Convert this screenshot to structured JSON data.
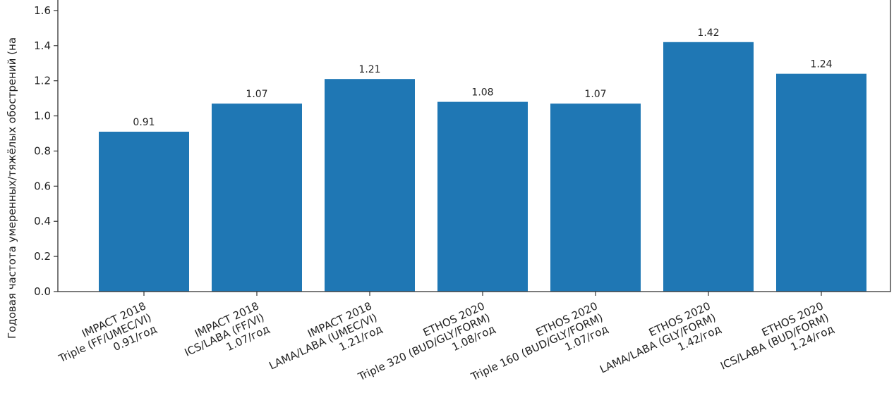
{
  "chart_data": {
    "type": "bar",
    "title": "",
    "xlabel": "",
    "ylabel": "Годовая частота умеренных/тяжёлых обострений (на",
    "ylim": [
      0,
      1.78
    ],
    "yticks": [
      "0.0",
      "0.2",
      "0.4",
      "0.6",
      "0.8",
      "1.0",
      "1.2",
      "1.4",
      "1.6"
    ],
    "bar_color": "#1f77b4",
    "grid": false,
    "categories": [
      [
        "IMPACT 2018",
        "Triple (FF/UMEC/VI)",
        "0.91/год"
      ],
      [
        "IMPACT 2018",
        "ICS/LABA (FF/VI)",
        "1.07/год"
      ],
      [
        "IMPACT 2018",
        "LAMA/LABA (UMEC/VI)",
        "1.21/год"
      ],
      [
        "ETHOS 2020",
        "Triple 320 (BUD/GLY/FORM)",
        "1.08/год"
      ],
      [
        "ETHOS 2020",
        "Triple 160 (BUD/GLY/FORM)",
        "1.07/год"
      ],
      [
        "ETHOS 2020",
        "LAMA/LABA (GLY/FORM)",
        "1.42/год"
      ],
      [
        "ETHOS 2020",
        "ICS/LABA (BUD/FORM)",
        "1.24/год"
      ]
    ],
    "values": [
      0.91,
      1.07,
      1.21,
      1.08,
      1.07,
      1.42,
      1.24
    ],
    "value_labels": [
      "0.91",
      "1.07",
      "1.21",
      "1.08",
      "1.07",
      "1.42",
      "1.24"
    ]
  }
}
